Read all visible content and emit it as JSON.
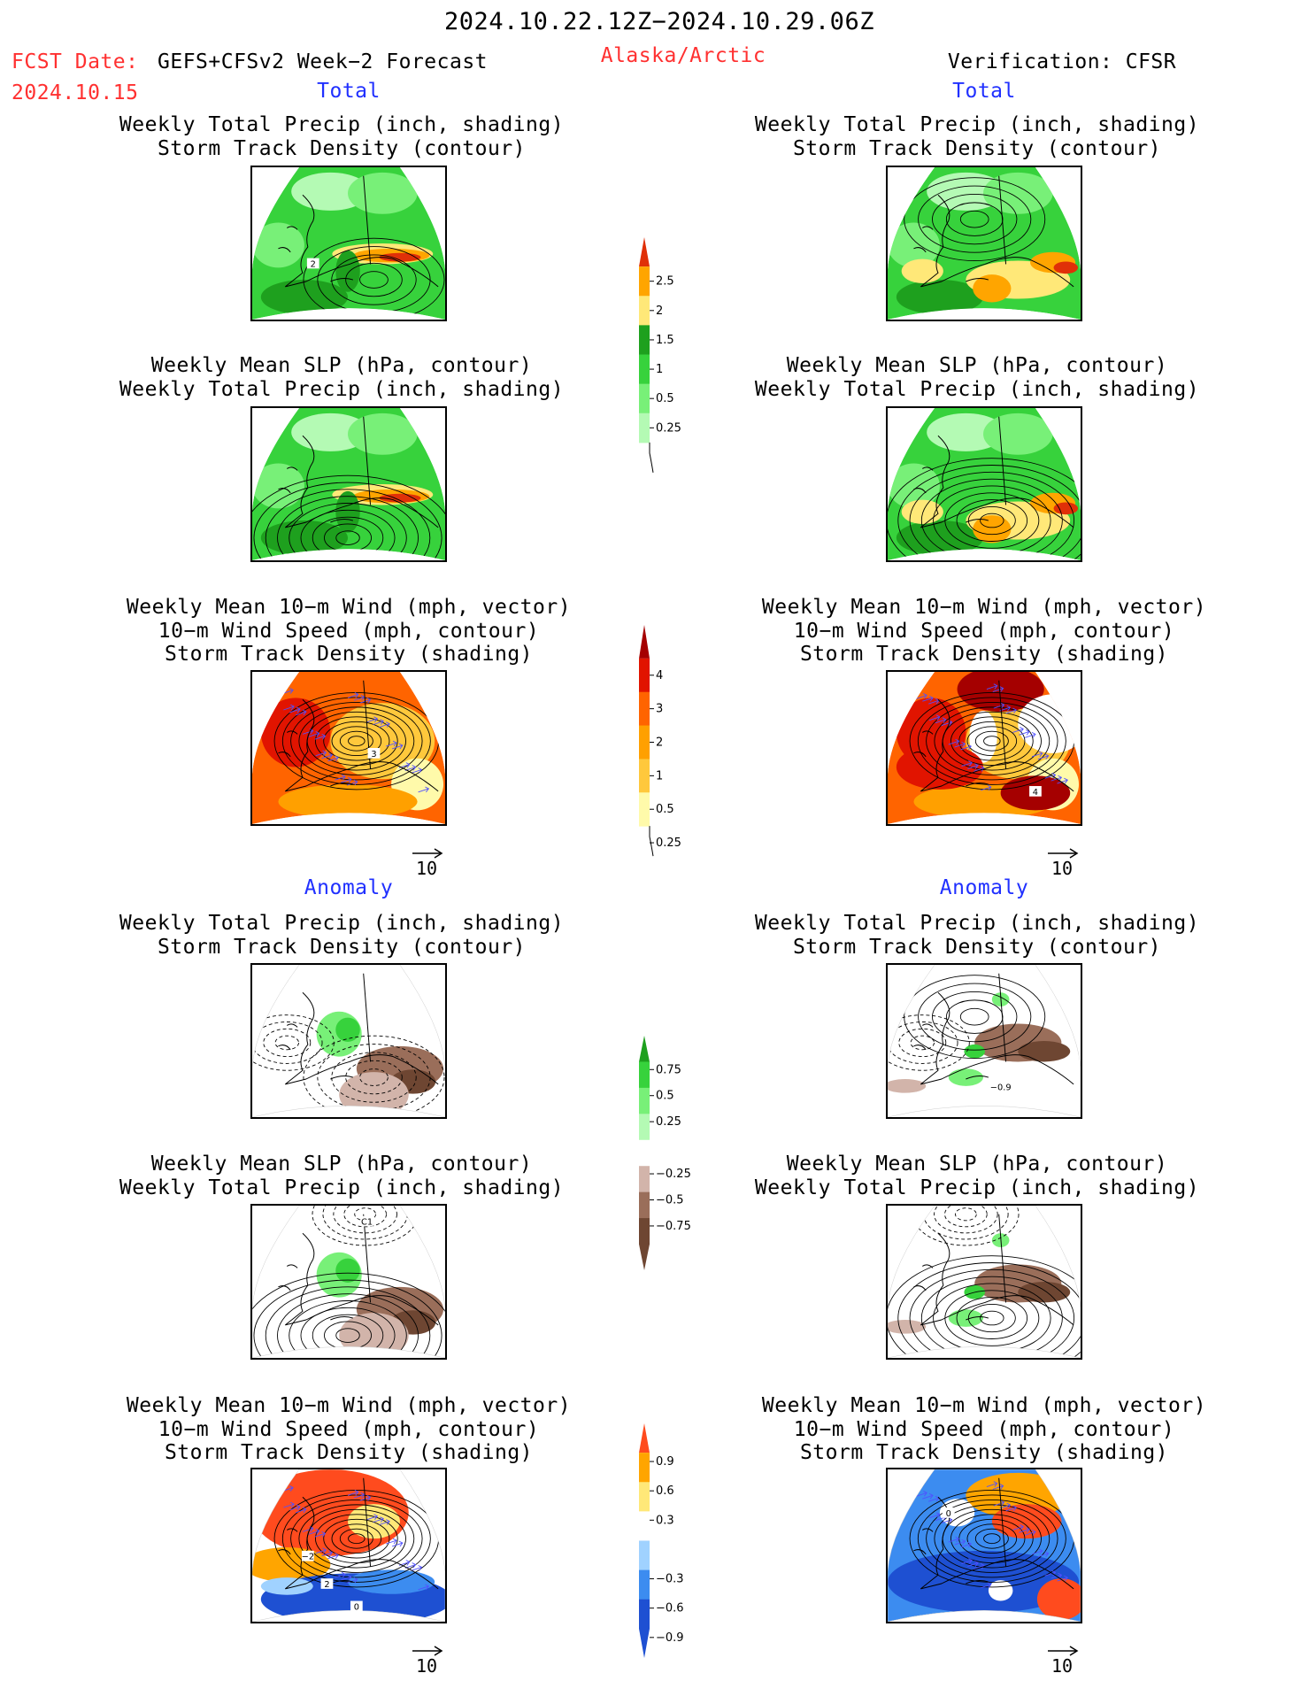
{
  "header": {
    "date_range": "2024.10.22.12Z−2024.10.29.06Z",
    "fcst_label": "FCST Date:",
    "fcst_model": "GEFS+CFSv2 Week−2 Forecast",
    "fcst_date": "2024.10.15",
    "region": "Alaska/Arctic",
    "verification": "Verification: CFSR"
  },
  "sections": {
    "total_left": "Total",
    "total_right": "Total",
    "anomaly_left": "Anomaly",
    "anomaly_right": "Anomaly"
  },
  "titles": {
    "precip_storm": [
      "Weekly Total Precip (inch, shading)",
      "Storm Track Density (contour)"
    ],
    "slp_precip": [
      "Weekly Mean SLP (hPa, contour)",
      "Weekly Total Precip (inch, shading)"
    ],
    "wind_storm": [
      "Weekly Mean 10−m Wind (mph, vector)",
      "10−m Wind Speed (mph, contour)",
      "Storm Track Density (shading)"
    ]
  },
  "vector_ref": "10",
  "panel_labels": {
    "t_precip_left": "2",
    "t_wind_left": "3",
    "t_wind_right": "4",
    "a_precip_right": "−0.9",
    "a_slp_left": "C1",
    "a_wind_left_a": "−2",
    "a_wind_left_b": "2",
    "a_wind_left_c": "0",
    "a_wind_right": "0"
  },
  "colors": {
    "precip_scale": [
      "#b4fab4",
      "#78f078",
      "#37d23c",
      "#1ea01e",
      "#ffe878",
      "#ffa500",
      "#e03008"
    ],
    "storm_scale": [
      "#fffaaa",
      "#ffc83c",
      "#ffa000",
      "#ff6400",
      "#e11400",
      "#a50000"
    ],
    "precip_anom_scale": [
      "#6e4632",
      "#9a6e5a",
      "#d2b4aa",
      "#ffffff",
      "#b4fab4",
      "#78f078",
      "#37d23c",
      "#1ea01e"
    ],
    "storm_anom_scale": [
      "#1e50d2",
      "#3c8cf0",
      "#a0d2ff",
      "#ffffff",
      "#ffe878",
      "#ffa500",
      "#ff4b1e"
    ]
  },
  "chart_data": [
    {
      "type": "heatmap",
      "title": "Weekly Total Precip (inch, shading) / Storm Track Density (contour)",
      "colorbar": {
        "ticks": [
          "2.5",
          "2",
          "1.5",
          "1",
          "0.5",
          "0.25"
        ],
        "values": [
          2.5,
          2,
          1.5,
          1,
          0.5,
          0.25
        ]
      }
    },
    {
      "type": "heatmap",
      "title": "Storm Track Density (shading), total",
      "colorbar": {
        "ticks": [
          "4",
          "3",
          "2",
          "1",
          "0.5",
          "0.25"
        ],
        "values": [
          4,
          3,
          2,
          1,
          0.5,
          0.25
        ]
      }
    },
    {
      "type": "heatmap",
      "title": "Weekly Total Precip anomaly (inch)",
      "colorbar": {
        "ticks": [
          "0.75",
          "0.5",
          "0.25",
          "−0.25",
          "−0.5",
          "−0.75"
        ],
        "values": [
          0.75,
          0.5,
          0.25,
          -0.25,
          -0.5,
          -0.75
        ]
      }
    },
    {
      "type": "heatmap",
      "title": "Storm Track Density anomaly",
      "colorbar": {
        "ticks": [
          "0.9",
          "0.6",
          "0.3",
          "−0.3",
          "−0.6",
          "−0.9"
        ],
        "values": [
          0.9,
          0.6,
          0.3,
          -0.3,
          -0.6,
          -0.9
        ]
      }
    }
  ]
}
